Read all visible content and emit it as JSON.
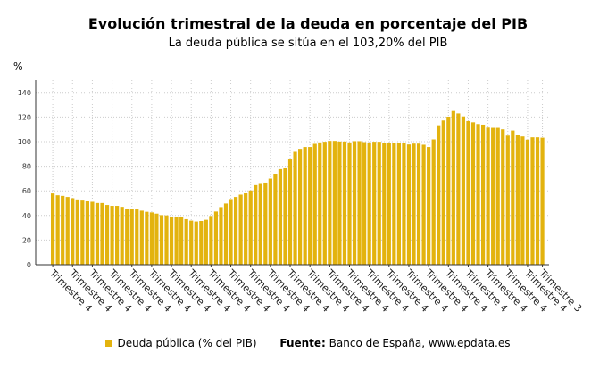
{
  "chart_data": {
    "type": "bar",
    "title": "Evolución trimestral de la deuda en porcentaje del PIB",
    "subtitle": "La deuda pública se sitúa en el 103,20% del PIB",
    "ylabel": "%",
    "ylim": [
      0,
      150
    ],
    "yticks": [
      0,
      20,
      40,
      60,
      80,
      100,
      120,
      140
    ],
    "grid": true,
    "legend_position": "bottom",
    "color": "#E3B30E",
    "x_tick_labels": [
      "Trimestre 4",
      "Trimestre 4",
      "Trimestre 4",
      "Trimestre 4",
      "Trimestre 4",
      "Trimestre 4",
      "Trimestre 4",
      "Trimestre 4",
      "Trimestre 4",
      "Trimestre 4",
      "Trimestre 4",
      "Trimestre 4",
      "Trimestre 4",
      "Trimestre 4",
      "Trimestre 4",
      "Trimestre 4",
      "Trimestre 4",
      "Trimestre 4",
      "Trimestre 4",
      "Trimestre 4",
      "Trimestre 4",
      "Trimestre 4",
      "Trimestre 4",
      "Trimestre 4",
      "Trimestre 4",
      "Trimestre 3"
    ],
    "series": [
      {
        "name": "Deuda pública (% del PIB)",
        "values": [
          57.9,
          56.4,
          55.9,
          55.0,
          54.0,
          53.0,
          52.8,
          51.9,
          51.1,
          50.1,
          50.1,
          48.5,
          47.8,
          47.8,
          47.0,
          45.6,
          45.1,
          44.9,
          43.9,
          43.0,
          42.5,
          41.5,
          40.3,
          40.1,
          39.1,
          38.9,
          38.4,
          37.0,
          35.8,
          35.1,
          35.5,
          36.5,
          39.6,
          43.2,
          46.8,
          49.7,
          53.3,
          55.0,
          56.9,
          58.1,
          60.3,
          64.6,
          66.3,
          66.7,
          69.9,
          73.9,
          77.6,
          79.0,
          86.2,
          92.4,
          94.1,
          95.6,
          95.6,
          98.2,
          99.4,
          99.9,
          100.6,
          100.6,
          100.1,
          100.1,
          99.4,
          100.4,
          100.4,
          99.6,
          99.2,
          99.9,
          99.9,
          99.2,
          98.7,
          99.2,
          98.7,
          98.7,
          97.7,
          98.4,
          98.4,
          97.5,
          95.6,
          101.8,
          113.3,
          117.2,
          120.3,
          125.6,
          122.9,
          120.5,
          116.7,
          115.7,
          114.3,
          113.8,
          111.4,
          111.2,
          111.2,
          110.0,
          104.9,
          109.0,
          105.2,
          104.2,
          101.6,
          103.5,
          103.5,
          103.2
        ]
      }
    ]
  },
  "legend": {
    "label": "Deuda pública (% del PIB)",
    "source_label": "Fuente:",
    "source_1": "Banco de España",
    "separator": ",",
    "source_2": "www.epdata.es"
  }
}
